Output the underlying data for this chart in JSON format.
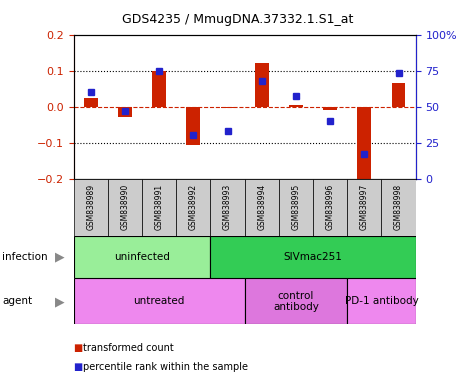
{
  "title": "GDS4235 / MmugDNA.37332.1.S1_at",
  "samples": [
    "GSM838989",
    "GSM838990",
    "GSM838991",
    "GSM838992",
    "GSM838993",
    "GSM838994",
    "GSM838995",
    "GSM838996",
    "GSM838997",
    "GSM838998"
  ],
  "transformed_count": [
    0.025,
    -0.03,
    0.1,
    -0.108,
    -0.005,
    0.12,
    0.005,
    -0.01,
    -0.205,
    0.065
  ],
  "percentile_rank": [
    60,
    47,
    75,
    30,
    33,
    68,
    57,
    40,
    17,
    73
  ],
  "ylim_left": [
    -0.2,
    0.2
  ],
  "ylim_right": [
    0,
    100
  ],
  "yticks_left": [
    -0.2,
    -0.1,
    0.0,
    0.1,
    0.2
  ],
  "yticks_right": [
    0,
    25,
    50,
    75,
    100
  ],
  "ytick_labels_right": [
    "0",
    "25",
    "50",
    "75",
    "100%"
  ],
  "hlines_dotted": [
    -0.1,
    0.1
  ],
  "hline_dashed": 0.0,
  "bar_color": "#cc2200",
  "marker_color": "#2222cc",
  "infection_groups": [
    {
      "label": "uninfected",
      "start": 0,
      "end": 4,
      "color": "#99ee99"
    },
    {
      "label": "SIVmac251",
      "start": 4,
      "end": 10,
      "color": "#33cc55"
    }
  ],
  "agent_groups": [
    {
      "label": "untreated",
      "start": 0,
      "end": 5,
      "color": "#ee88ee"
    },
    {
      "label": "control\nantibody",
      "start": 5,
      "end": 8,
      "color": "#dd77dd"
    },
    {
      "label": "PD-1 antibody",
      "start": 8,
      "end": 10,
      "color": "#ee88ee"
    }
  ],
  "legend_items": [
    {
      "label": "transformed count",
      "color": "#cc2200"
    },
    {
      "label": "percentile rank within the sample",
      "color": "#2222cc"
    }
  ],
  "infection_label": "infection",
  "agent_label": "agent",
  "title_color": "#000000",
  "left_axis_color": "#cc2200",
  "right_axis_color": "#2222cc",
  "sample_bg": "#cccccc",
  "bar_width": 0.4
}
